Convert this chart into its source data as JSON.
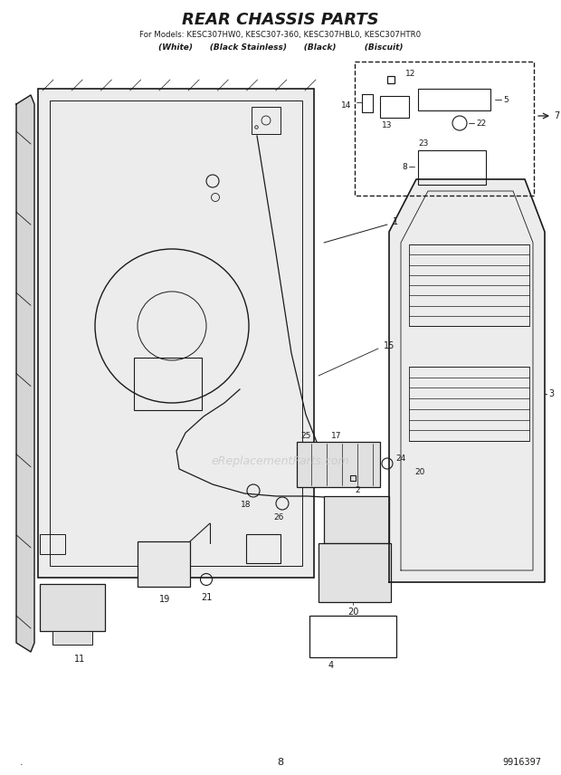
{
  "title": "REAR CHASSIS PARTS",
  "subtitle": "For Models: KESC307HW0, KESC307-360, KESC307HBL0, KESC307HTR0",
  "subtitle2": "(White)      (Black Stainless)      (Black)          (Biscuit)",
  "bg_color": "#ffffff",
  "line_color": "#1a1a1a",
  "watermark": "eReplacementParts.com",
  "page_num": "8",
  "doc_num": "9916397"
}
